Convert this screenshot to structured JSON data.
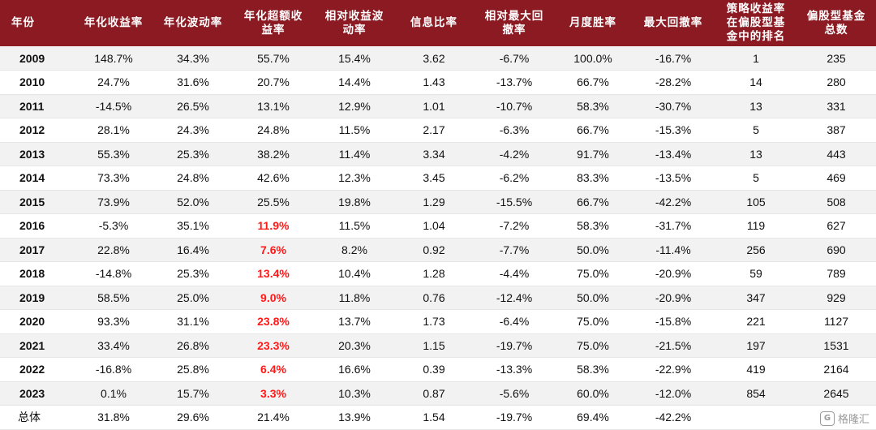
{
  "table": {
    "headers": [
      [
        "年份"
      ],
      [
        "年化收益率"
      ],
      [
        "年化波动率"
      ],
      [
        "年化超额收",
        "益率"
      ],
      [
        "相对收益波",
        "动率"
      ],
      [
        "信息比率"
      ],
      [
        "相对最大回",
        "撤率"
      ],
      [
        "月度胜率"
      ],
      [
        "最大回撤率"
      ],
      [
        "策略收益率",
        "在偏股型基",
        "金中的排名"
      ],
      [
        "偏股型基金",
        "总数"
      ]
    ],
    "rows": [
      [
        "2009",
        "148.7%",
        "34.3%",
        "55.7%",
        "15.4%",
        "3.62",
        "-6.7%",
        "100.0%",
        "-16.7%",
        "1",
        "235"
      ],
      [
        "2010",
        "24.7%",
        "31.6%",
        "20.7%",
        "14.4%",
        "1.43",
        "-13.7%",
        "66.7%",
        "-28.2%",
        "14",
        "280"
      ],
      [
        "2011",
        "-14.5%",
        "26.5%",
        "13.1%",
        "12.9%",
        "1.01",
        "-10.7%",
        "58.3%",
        "-30.7%",
        "13",
        "331"
      ],
      [
        "2012",
        "28.1%",
        "24.3%",
        "24.8%",
        "11.5%",
        "2.17",
        "-6.3%",
        "66.7%",
        "-15.3%",
        "5",
        "387"
      ],
      [
        "2013",
        "55.3%",
        "25.3%",
        "38.2%",
        "11.4%",
        "3.34",
        "-4.2%",
        "91.7%",
        "-13.4%",
        "13",
        "443"
      ],
      [
        "2014",
        "73.3%",
        "24.8%",
        "42.6%",
        "12.3%",
        "3.45",
        "-6.2%",
        "83.3%",
        "-13.5%",
        "5",
        "469"
      ],
      [
        "2015",
        "73.9%",
        "52.0%",
        "25.5%",
        "19.8%",
        "1.29",
        "-15.5%",
        "66.7%",
        "-42.2%",
        "105",
        "508"
      ],
      [
        "2016",
        "-5.3%",
        "35.1%",
        "11.9%",
        "11.5%",
        "1.04",
        "-7.2%",
        "58.3%",
        "-31.7%",
        "119",
        "627"
      ],
      [
        "2017",
        "22.8%",
        "16.4%",
        "7.6%",
        "8.2%",
        "0.92",
        "-7.7%",
        "50.0%",
        "-11.4%",
        "256",
        "690"
      ],
      [
        "2018",
        "-14.8%",
        "25.3%",
        "13.4%",
        "10.4%",
        "1.28",
        "-4.4%",
        "75.0%",
        "-20.9%",
        "59",
        "789"
      ],
      [
        "2019",
        "58.5%",
        "25.0%",
        "9.0%",
        "11.8%",
        "0.76",
        "-12.4%",
        "50.0%",
        "-20.9%",
        "347",
        "929"
      ],
      [
        "2020",
        "93.3%",
        "31.1%",
        "23.8%",
        "13.7%",
        "1.73",
        "-6.4%",
        "75.0%",
        "-15.8%",
        "221",
        "1127"
      ],
      [
        "2021",
        "33.4%",
        "26.8%",
        "23.3%",
        "20.3%",
        "1.15",
        "-19.7%",
        "75.0%",
        "-21.5%",
        "197",
        "1531"
      ],
      [
        "2022",
        "-16.8%",
        "25.8%",
        "6.4%",
        "16.6%",
        "0.39",
        "-13.3%",
        "58.3%",
        "-22.9%",
        "419",
        "2164"
      ],
      [
        "2023",
        "0.1%",
        "15.7%",
        "3.3%",
        "10.3%",
        "0.87",
        "-5.6%",
        "60.0%",
        "-12.0%",
        "854",
        "2645"
      ],
      [
        "总体",
        "31.8%",
        "29.6%",
        "21.4%",
        "13.9%",
        "1.54",
        "-19.7%",
        "69.4%",
        "-42.2%",
        "",
        ""
      ]
    ],
    "highlight": {
      "column": 3,
      "from_row": 7,
      "to_row": 14,
      "color": "#ff1a1a"
    },
    "header_bg": "#8b1a22"
  },
  "watermark": {
    "text": "格隆汇",
    "icon": "logo-icon"
  }
}
